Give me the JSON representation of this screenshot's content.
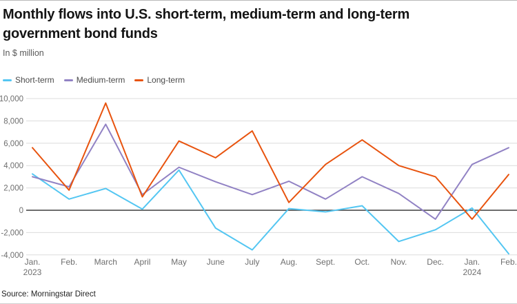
{
  "header": {
    "title": "Monthly flows into U.S. short-term, medium-term and long-term government bond funds",
    "subtitle": "In $ million"
  },
  "footer": {
    "source": "Source: Morningstar Direct"
  },
  "colors": {
    "short_term": "#53c6f2",
    "medium_term": "#9182c4",
    "long_term": "#e8530e",
    "grid_line": "#dcdcdc",
    "zero_line": "#3d3d3d",
    "axis_text": "#6e6e6e",
    "title_text": "#141414"
  },
  "chart_data": {
    "type": "line",
    "title": "Monthly flows into U.S. short-term, medium-term and long-term government bond funds",
    "ylabel": "In $ million",
    "ylim": [
      -4000,
      10000
    ],
    "yticks": [
      10000,
      8000,
      6000,
      4000,
      2000,
      0,
      -2000,
      -4000
    ],
    "grid": true,
    "legend_position": "top-left",
    "categories": [
      {
        "label": "Jan.",
        "sub": "2023"
      },
      {
        "label": "Feb."
      },
      {
        "label": "March"
      },
      {
        "label": "April"
      },
      {
        "label": "May"
      },
      {
        "label": "June"
      },
      {
        "label": "July"
      },
      {
        "label": "Aug."
      },
      {
        "label": "Sept."
      },
      {
        "label": "Oct."
      },
      {
        "label": "Nov."
      },
      {
        "label": "Dec."
      },
      {
        "label": "Jan.",
        "sub": "2024"
      },
      {
        "label": "Feb."
      }
    ],
    "series": [
      {
        "name": "Short-term",
        "color": "#53c6f2",
        "values": [
          3250,
          1000,
          1950,
          100,
          3600,
          -1600,
          -3550,
          150,
          -150,
          400,
          -2800,
          -1750,
          200,
          -3900
        ]
      },
      {
        "name": "Medium-term",
        "color": "#9182c4",
        "values": [
          3000,
          2100,
          7700,
          1400,
          3850,
          2550,
          1400,
          2600,
          1000,
          3000,
          1500,
          -800,
          4100,
          5600
        ]
      },
      {
        "name": "Long-term",
        "color": "#e8530e",
        "values": [
          5600,
          1800,
          9600,
          1200,
          6200,
          4700,
          7100,
          700,
          4100,
          6300,
          4000,
          3000,
          -800,
          3200
        ]
      }
    ]
  }
}
